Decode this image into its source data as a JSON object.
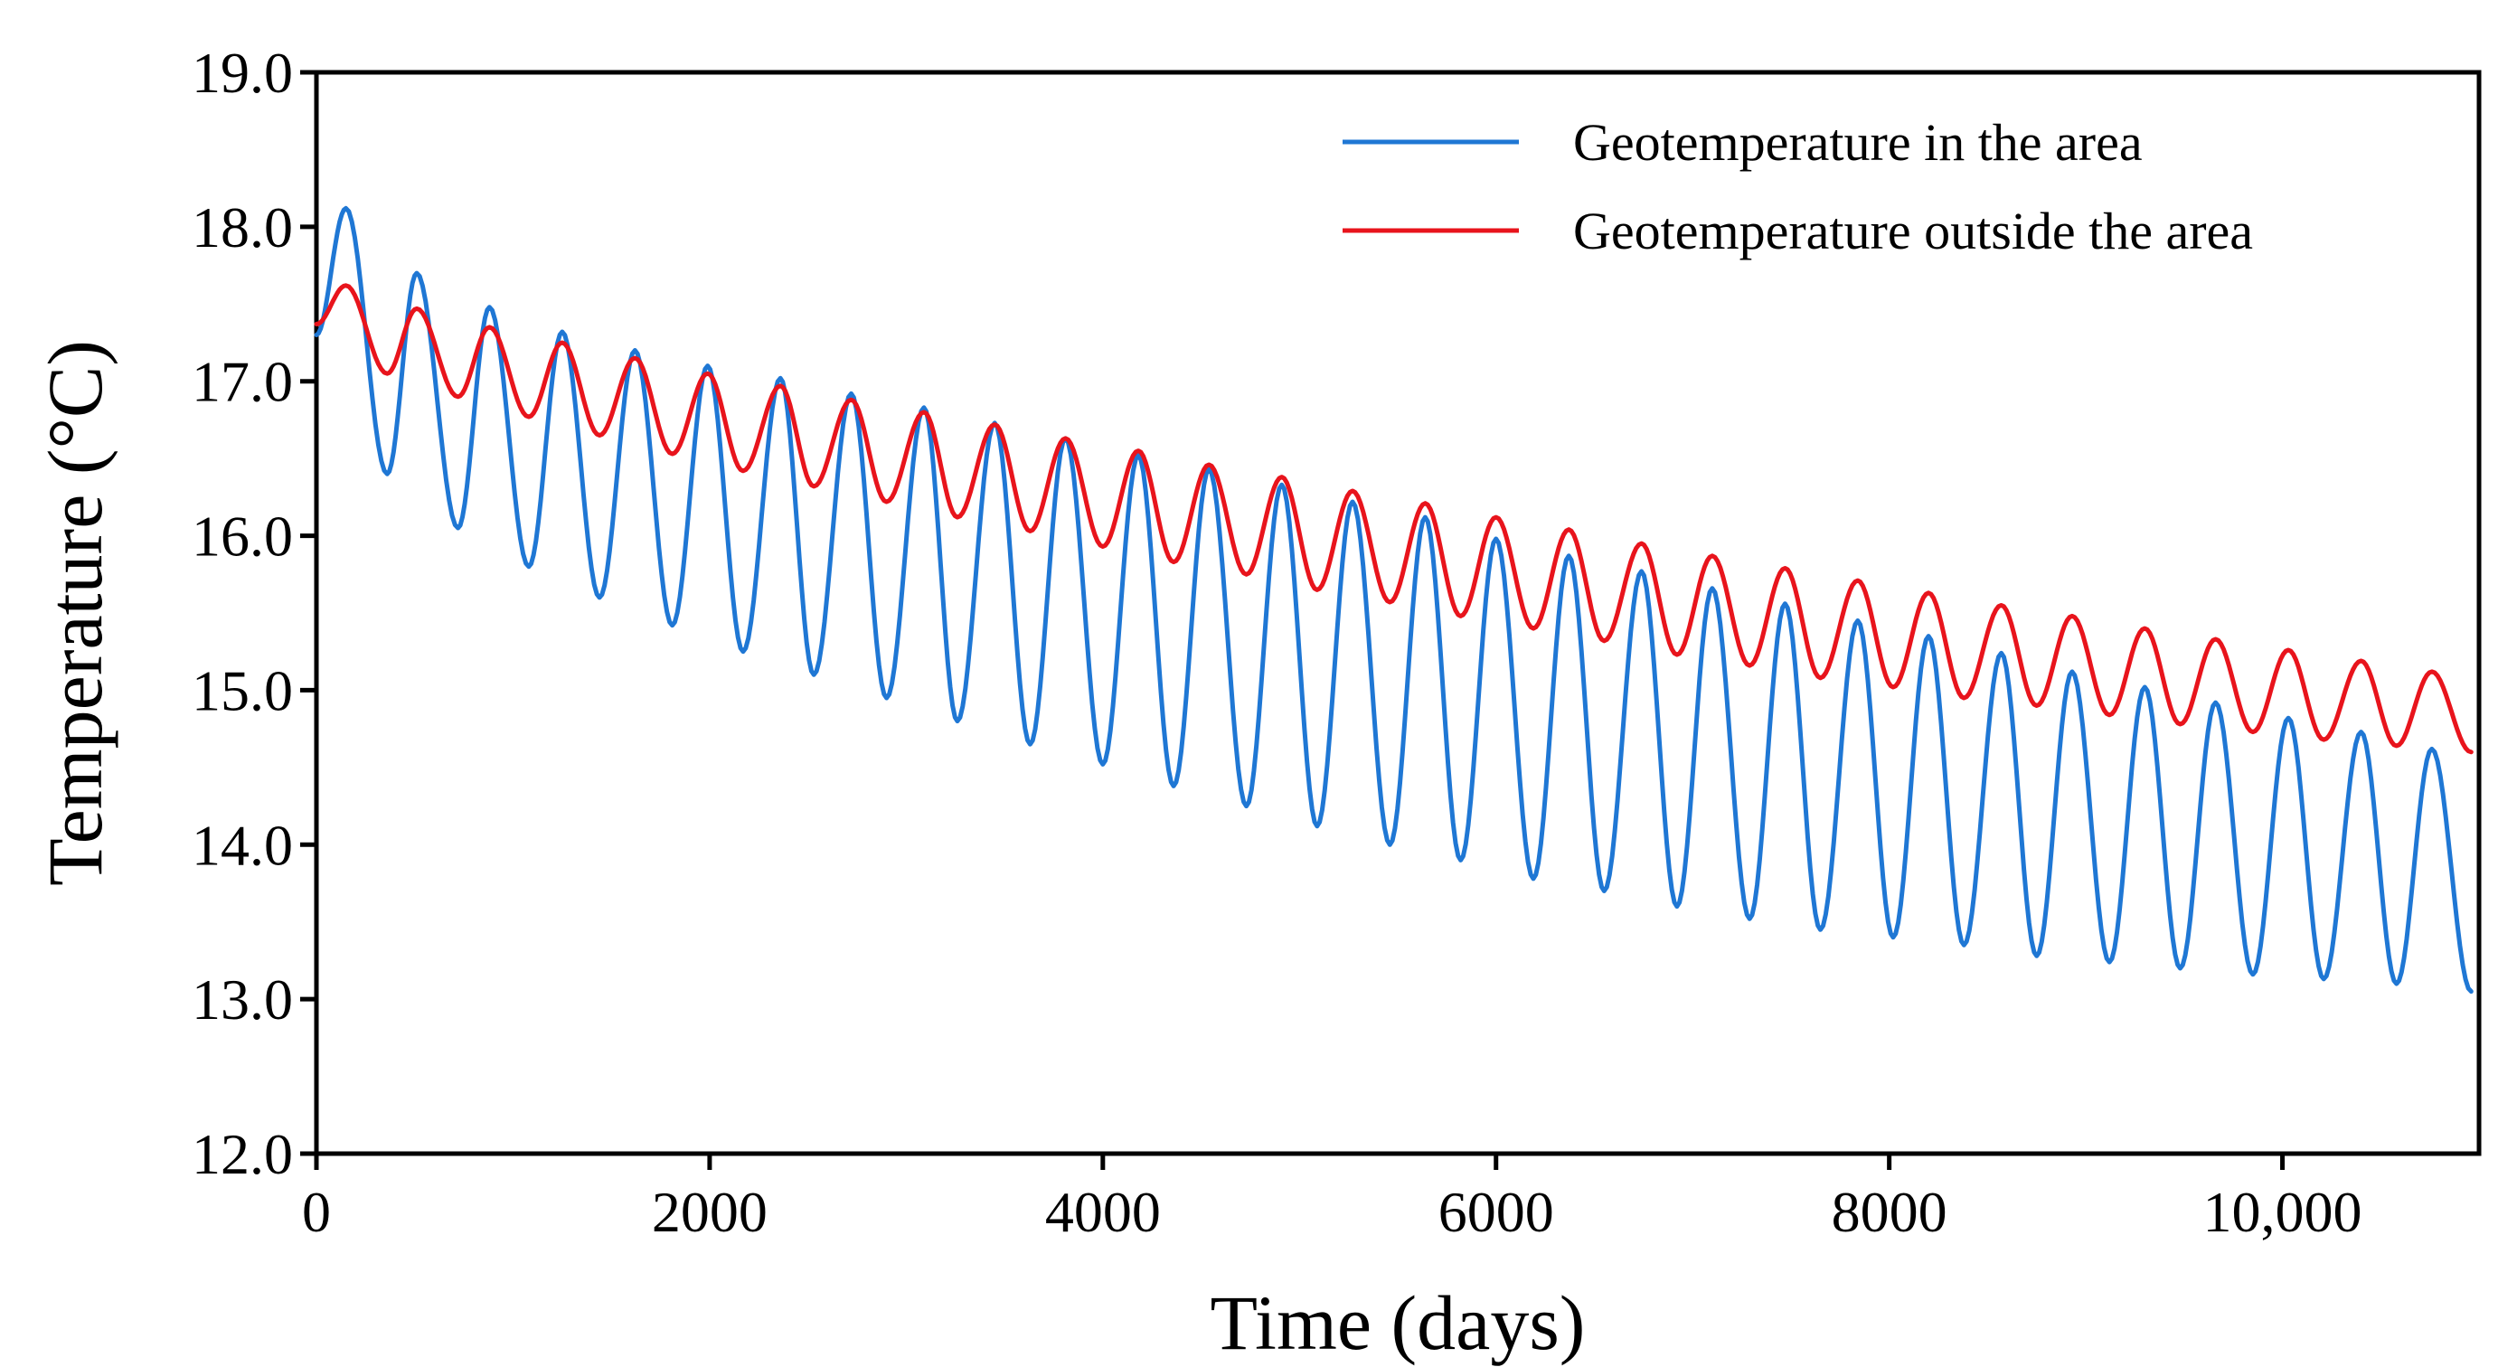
{
  "chart_data": {
    "type": "line",
    "title": "",
    "xlabel": "Time (days)",
    "ylabel": "Temperature (°C)",
    "xlim": [
      0,
      11000
    ],
    "ylim": [
      12.0,
      19.0
    ],
    "xticks": [
      0,
      2000,
      4000,
      6000,
      8000,
      10000
    ],
    "xtick_labels": [
      "0",
      "2000",
      "4000",
      "6000",
      "8000",
      "10,000"
    ],
    "yticks": [
      12.0,
      13.0,
      14.0,
      15.0,
      16.0,
      17.0,
      18.0,
      19.0
    ],
    "ytick_labels": [
      "12.0",
      "13.0",
      "14.0",
      "15.0",
      "16.0",
      "17.0",
      "18.0",
      "19.0"
    ],
    "grid": false,
    "legend_position": "top-right",
    "series": [
      {
        "name": "Geotemperature in the area",
        "color": "#1f77d4",
        "x": [
          0,
          150,
          360,
          510,
          720,
          880,
          1080,
          1250,
          1440,
          1620,
          1810,
          1990,
          2170,
          2360,
          2530,
          2720,
          2900,
          3090,
          3260,
          3450,
          3630,
          3810,
          4000,
          4180,
          4360,
          4540,
          4730,
          4910,
          5090,
          5270,
          5460,
          5640,
          5820,
          6000,
          6190,
          6370,
          6550,
          6740,
          6920,
          7100,
          7290,
          7470,
          7650,
          7840,
          8020,
          8200,
          8380,
          8570,
          8750,
          8930,
          9120,
          9300,
          9480,
          9660,
          9850,
          10030,
          10210,
          10400,
          10580,
          10760,
          10960
        ],
        "values": [
          17.3,
          18.12,
          16.4,
          17.7,
          16.05,
          17.48,
          15.8,
          17.32,
          15.6,
          17.2,
          15.42,
          17.1,
          15.25,
          17.02,
          15.1,
          16.92,
          14.95,
          16.83,
          14.8,
          16.73,
          14.65,
          16.63,
          14.52,
          16.52,
          14.38,
          16.43,
          14.25,
          16.33,
          14.12,
          16.22,
          14.0,
          16.12,
          13.9,
          15.98,
          13.78,
          15.87,
          13.7,
          15.77,
          13.6,
          15.66,
          13.52,
          15.56,
          13.45,
          15.45,
          13.4,
          15.35,
          13.35,
          15.24,
          13.28,
          15.12,
          13.24,
          15.02,
          13.2,
          14.92,
          13.16,
          14.82,
          13.13,
          14.73,
          13.1,
          14.62,
          13.05
        ]
      },
      {
        "name": "Geotemperature outside the area",
        "color": "#e8141c",
        "x": [
          0,
          150,
          360,
          510,
          720,
          880,
          1080,
          1250,
          1440,
          1620,
          1810,
          1990,
          2170,
          2360,
          2530,
          2720,
          2900,
          3090,
          3260,
          3450,
          3630,
          3810,
          4000,
          4180,
          4360,
          4540,
          4730,
          4910,
          5090,
          5270,
          5460,
          5640,
          5820,
          6000,
          6190,
          6370,
          6550,
          6740,
          6920,
          7100,
          7290,
          7470,
          7650,
          7840,
          8020,
          8200,
          8380,
          8570,
          8750,
          8930,
          9120,
          9300,
          9480,
          9660,
          9850,
          10030,
          10210,
          10400,
          10580,
          10760,
          10960
        ],
        "values": [
          17.37,
          17.62,
          17.05,
          17.47,
          16.9,
          17.35,
          16.77,
          17.25,
          16.65,
          17.15,
          16.53,
          17.05,
          16.42,
          16.97,
          16.32,
          16.88,
          16.22,
          16.8,
          16.12,
          16.72,
          16.03,
          16.63,
          15.93,
          16.55,
          15.83,
          16.46,
          15.75,
          16.38,
          15.65,
          16.29,
          15.57,
          16.21,
          15.48,
          16.12,
          15.4,
          16.04,
          15.32,
          15.95,
          15.23,
          15.87,
          15.16,
          15.79,
          15.08,
          15.71,
          15.02,
          15.63,
          14.95,
          15.55,
          14.9,
          15.48,
          14.84,
          15.4,
          14.78,
          15.33,
          14.73,
          15.26,
          14.68,
          15.19,
          14.64,
          15.12,
          14.6
        ]
      }
    ]
  }
}
